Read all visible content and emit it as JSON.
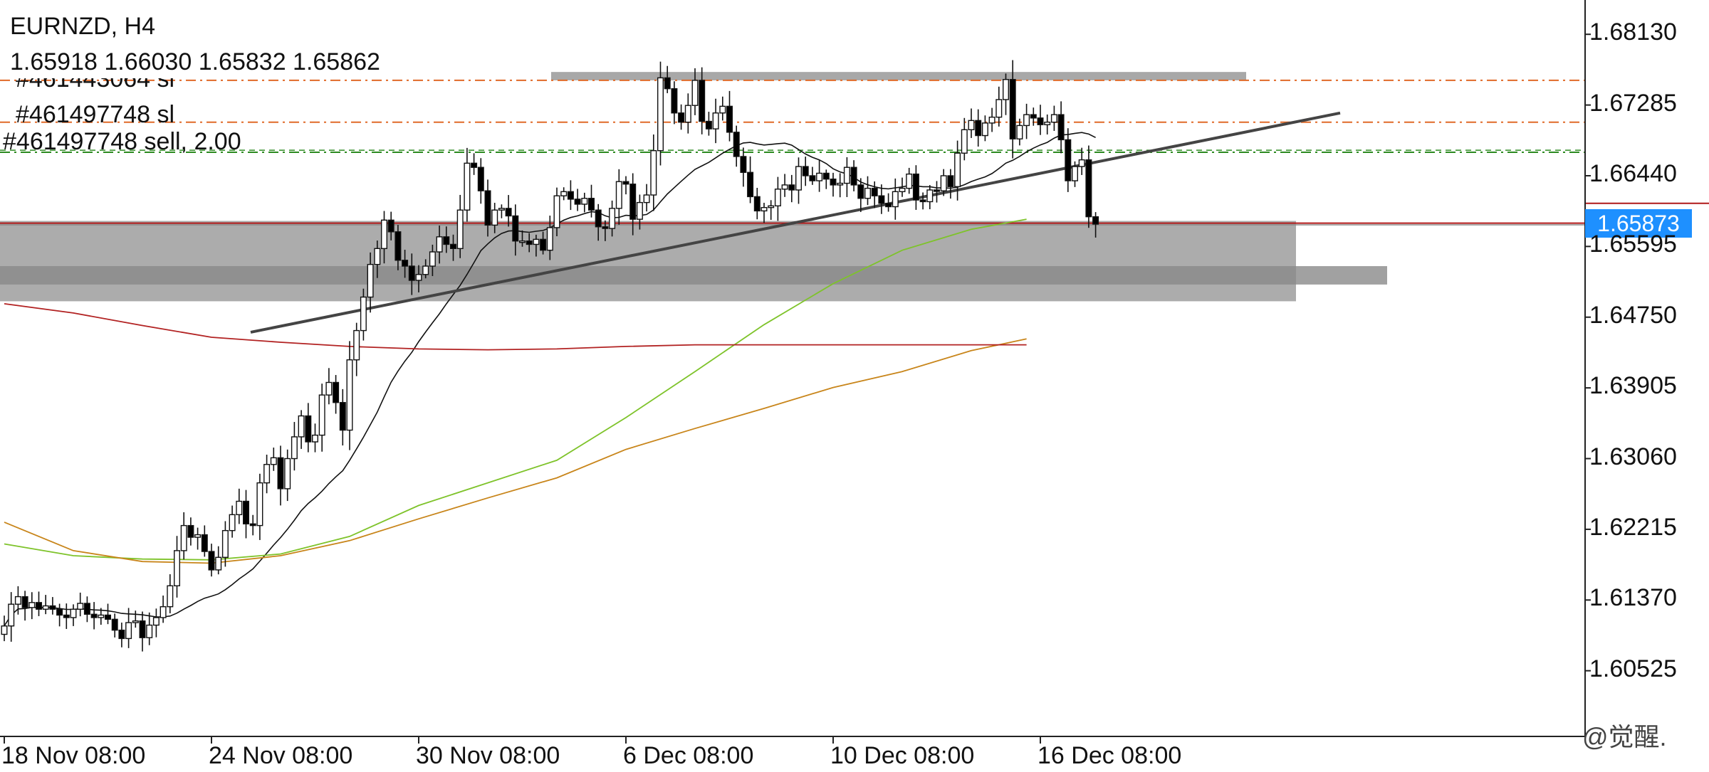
{
  "header": {
    "symbol_tf": "EURNZD, H4",
    "ohlc": "1.65918 1.66030 1.65832 1.65862"
  },
  "orders": {
    "label_1": "#461443064 sl",
    "label_2": "#461497748 sl",
    "label_3": "#461497748 sell, 2.00"
  },
  "current_price": {
    "text": "1.65873",
    "badge_color": "#1e90ff"
  },
  "watermark": "@觉醒.",
  "colors": {
    "up_candle": "#ffffff",
    "down_candle": "#000000",
    "sma_fast": "#111111",
    "sma_mid": "#7ec32a",
    "sma_slow": "#c8851a",
    "sma_long": "#b22222",
    "sl_line": "#e06a28",
    "entry_line": "#2e8b22",
    "zone": "#9e9e9e",
    "trendline": "#444444"
  },
  "chart_data": {
    "type": "candlestick",
    "symbol": "EURNZD",
    "timeframe": "H4",
    "x_tick_labels": [
      "18 Nov 08:00",
      "24 Nov 08:00",
      "30 Nov 08:00",
      "6 Dec 08:00",
      "10 Dec 08:00",
      "16 Dec 08:00"
    ],
    "x_tick_bar_index": [
      0,
      30,
      60,
      90,
      120,
      150
    ],
    "y_tick_labels": [
      "1.68130",
      "1.67285",
      "1.66440",
      "1.65595",
      "1.64750",
      "1.63905",
      "1.63060",
      "1.62215",
      "1.61370",
      "1.60525"
    ],
    "y_ticks": [
      1.6813,
      1.67285,
      1.6644,
      1.65595,
      1.6475,
      1.63905,
      1.6306,
      1.62215,
      1.6137,
      1.60525
    ],
    "ylim": [
      1.5974,
      1.6854
    ],
    "bars_total": 230,
    "last_close": 1.65862,
    "closes": [
      1.6106,
      1.6132,
      1.6141,
      1.6128,
      1.6134,
      1.6126,
      1.613,
      1.6126,
      1.6119,
      1.6116,
      1.6126,
      1.6133,
      1.612,
      1.6116,
      1.6119,
      1.6114,
      1.6101,
      1.6091,
      1.611,
      1.6112,
      1.6092,
      1.6107,
      1.6116,
      1.6129,
      1.6154,
      1.6196,
      1.6226,
      1.6212,
      1.6215,
      1.6195,
      1.6173,
      1.6188,
      1.622,
      1.6239,
      1.6255,
      1.6228,
      1.6226,
      1.6277,
      1.6299,
      1.6307,
      1.627,
      1.6306,
      1.6332,
      1.6357,
      1.6326,
      1.6334,
      1.6382,
      1.6397,
      1.6373,
      1.634,
      1.6424,
      1.6459,
      1.6499,
      1.6538,
      1.6557,
      1.6591,
      1.6577,
      1.6543,
      1.6536,
      1.6519,
      1.6526,
      1.6536,
      1.6553,
      1.6571,
      1.6562,
      1.6557,
      1.6603,
      1.6659,
      1.6654,
      1.6626,
      1.6585,
      1.6603,
      1.6605,
      1.6596,
      1.6566,
      1.6566,
      1.6562,
      1.6568,
      1.6555,
      1.6582,
      1.662,
      1.6625,
      1.6616,
      1.661,
      1.6617,
      1.6603,
      1.6583,
      1.6581,
      1.6605,
      1.6637,
      1.6634,
      1.6592,
      1.6612,
      1.6621,
      1.6674,
      1.6761,
      1.6748,
      1.6719,
      1.6708,
      1.6728,
      1.6758,
      1.6709,
      1.67,
      1.6719,
      1.6727,
      1.6696,
      1.6667,
      1.6648,
      1.6619,
      1.6602,
      1.6606,
      1.6608,
      1.6628,
      1.6633,
      1.6627,
      1.6655,
      1.6644,
      1.6638,
      1.6647,
      1.664,
      1.6633,
      1.6635,
      1.6654,
      1.6633,
      1.6617,
      1.6629,
      1.662,
      1.6611,
      1.6607,
      1.6625,
      1.6629,
      1.6646,
      1.6615,
      1.6613,
      1.6627,
      1.6626,
      1.6644,
      1.6631,
      1.6671,
      1.6699,
      1.671,
      1.6692,
      1.6707,
      1.6714,
      1.6735,
      1.6759,
      1.6688,
      1.6704,
      1.6717,
      1.6713,
      1.6705,
      1.6708,
      1.6717,
      1.6687,
      1.6638,
      1.6655,
      1.6663,
      1.6595,
      1.65862
    ]
  }
}
